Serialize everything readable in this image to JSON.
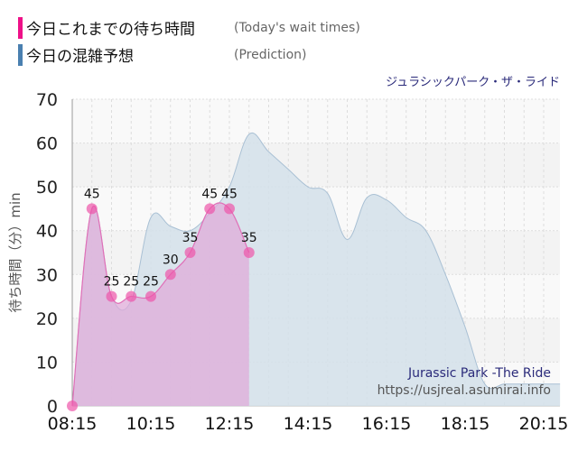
{
  "legend": [
    {
      "label": "今日これまでの待ち時間",
      "sub": "(Today's wait times)",
      "color": "#ee1188"
    },
    {
      "label": "今日の混雑予想",
      "sub": "(Prediction)",
      "color": "#4a80b0"
    }
  ],
  "ride_name_ja": "ジュラシックパーク・ザ・ライド",
  "watermark": {
    "title": "Jurassic Park -The Ride",
    "url": "https://usjreal.asumirai.info"
  },
  "chart_data": {
    "type": "area",
    "ylabel": "待ち時間（分）min",
    "ylim": [
      0,
      70
    ],
    "yticks": [
      0,
      10,
      20,
      30,
      40,
      50,
      60,
      70
    ],
    "xticks": [
      "08:15",
      "10:15",
      "12:15",
      "14:15",
      "16:15",
      "18:15",
      "20:15"
    ],
    "xrange": [
      "08:15",
      "20:40"
    ],
    "grid": true,
    "series": [
      {
        "name": "今日の混雑予想",
        "color": "#b8cde0",
        "x": [
          "08:15",
          "08:45",
          "09:15",
          "09:45",
          "10:15",
          "10:45",
          "11:15",
          "11:45",
          "12:15",
          "12:45",
          "13:15",
          "13:45",
          "14:15",
          "14:45",
          "15:15",
          "15:45",
          "16:15",
          "16:45",
          "17:15",
          "17:45",
          "18:15",
          "18:45",
          "19:15",
          "19:45",
          "20:15",
          "20:40"
        ],
        "values": [
          0,
          45,
          25,
          24,
          43,
          41,
          40,
          44,
          50,
          62,
          58,
          54,
          50,
          48.5,
          38,
          47.5,
          47,
          43,
          40,
          30,
          18,
          5,
          5,
          5,
          5,
          5
        ]
      },
      {
        "name": "今日これまでの待ち時間",
        "color": "#ee66bb",
        "x": [
          "08:15",
          "08:45",
          "09:15",
          "09:45",
          "10:15",
          "10:45",
          "11:15",
          "11:45",
          "12:15",
          "12:45"
        ],
        "values": [
          0,
          45,
          25,
          25,
          25,
          30,
          35,
          45,
          45,
          35
        ],
        "labels": [
          "",
          "45",
          "25",
          "25",
          "25",
          "30",
          "35",
          "45",
          "45",
          "35"
        ]
      }
    ]
  }
}
